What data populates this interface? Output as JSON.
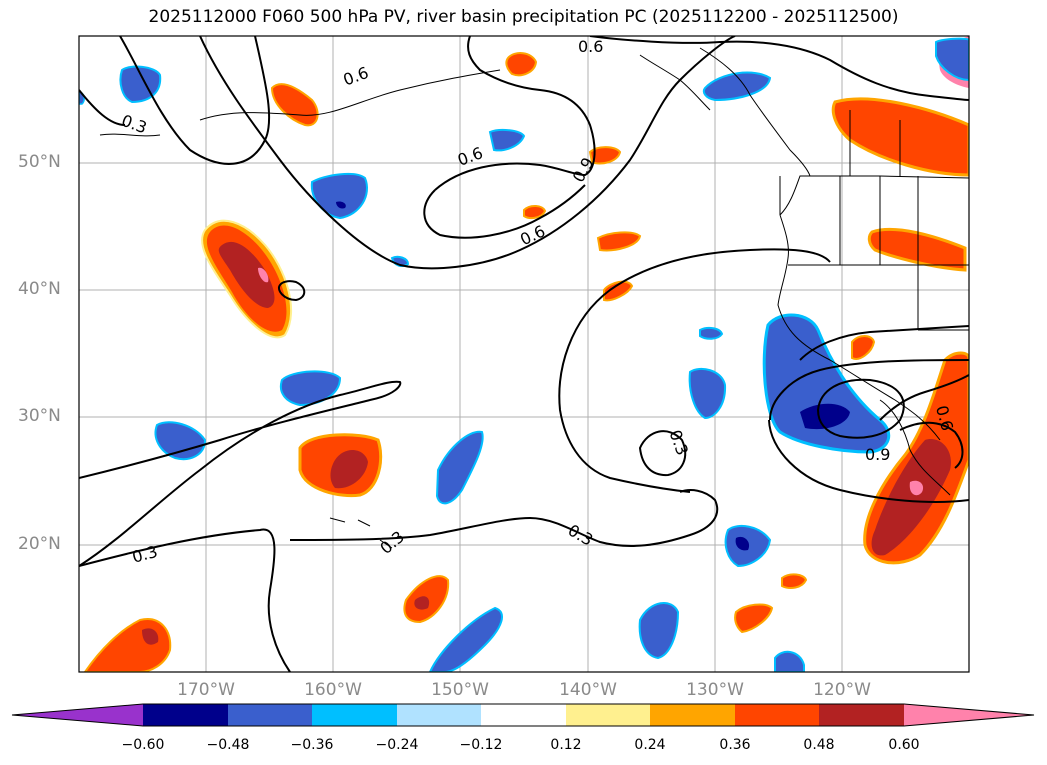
{
  "title": "2025112000 F060 500 hPa PV, river basin precipitation PC (2025112200 - 2025112500)",
  "lat_labels": [
    "50°N",
    "40°N",
    "30°N",
    "20°N"
  ],
  "lon_labels": [
    "170°W",
    "160°W",
    "150°W",
    "140°W",
    "130°W",
    "120°W"
  ],
  "contour_labels": [
    "0.3",
    "0.6",
    "0.6",
    "0.6",
    "0.9",
    "0.6",
    "0.3",
    "0.3",
    "0.3",
    "0.9",
    "0.6",
    "0.3"
  ],
  "colorbar": {
    "colors": [
      "#9932cc",
      "#00008b",
      "#3a5fcd",
      "#00bfff",
      "#b0e2ff",
      "#ffffff",
      "#fff08f",
      "#ffa500",
      "#ff4500",
      "#b22222",
      "#ff82ab"
    ],
    "tick_labels": [
      "−0.60",
      "−0.48",
      "−0.36",
      "−0.24",
      "−0.12",
      "0.12",
      "0.24",
      "0.36",
      "0.48",
      "0.60"
    ]
  }
}
